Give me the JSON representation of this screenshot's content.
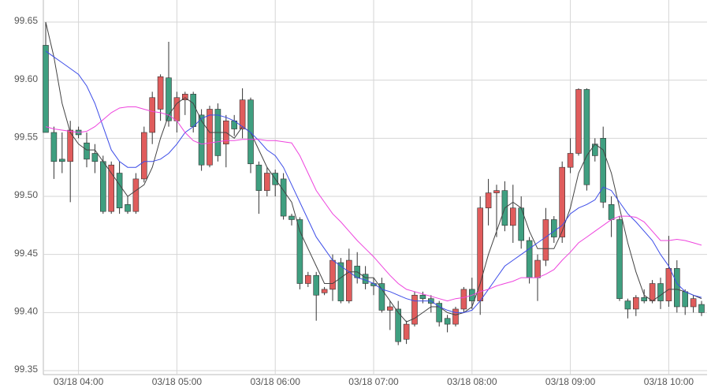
{
  "chart_data": {
    "type": "candlestick",
    "categories": [
      null,
      null,
      null,
      null,
      "03/18 04:00",
      null,
      null,
      null,
      null,
      null,
      null,
      null,
      null,
      null,
      null,
      null,
      "03/18 05:00",
      null,
      null,
      null,
      null,
      null,
      null,
      null,
      null,
      null,
      null,
      null,
      "03/18 06:00",
      null,
      null,
      null,
      null,
      null,
      null,
      null,
      null,
      null,
      null,
      null,
      "03/18 07:00",
      null,
      null,
      null,
      null,
      null,
      null,
      null,
      null,
      null,
      null,
      null,
      "03/18 08:00",
      null,
      null,
      null,
      null,
      null,
      null,
      null,
      null,
      null,
      null,
      null,
      "03/18 09:00",
      null,
      null,
      null,
      null,
      null,
      null,
      null,
      null,
      null,
      null,
      null,
      "03/18 10:00",
      null,
      null,
      null,
      null
    ],
    "open": [
      99.63,
      99.555,
      99.532,
      99.53,
      99.557,
      99.546,
      99.537,
      99.53,
      99.487,
      99.52,
      99.493,
      99.487,
      99.515,
      99.555,
      99.575,
      99.602,
      99.565,
      99.583,
      99.588,
      99.57,
      99.527,
      99.575,
      99.545,
      99.565,
      99.558,
      99.583,
      99.527,
      99.505,
      99.52,
      99.515,
      99.483,
      99.48,
      99.425,
      99.432,
      99.417,
      99.42,
      99.443,
      99.41,
      99.44,
      99.433,
      99.425,
      99.425,
      99.402,
      99.403,
      99.377,
      99.39,
      99.415,
      99.412,
      99.408,
      99.395,
      99.39,
      99.403,
      99.42,
      99.41,
      99.49,
      99.503,
      99.505,
      99.475,
      99.49,
      99.462,
      99.43,
      99.445,
      99.48,
      99.465,
      99.525,
      99.537,
      99.592,
      99.545,
      99.55,
      99.493,
      99.48,
      99.41,
      99.403,
      99.413,
      99.41,
      99.425,
      99.41,
      99.438,
      99.418,
      99.405,
      99.407
    ],
    "high": [
      99.65,
      99.56,
      99.555,
      99.565,
      99.56,
      99.555,
      99.545,
      99.535,
      99.53,
      99.53,
      99.5,
      99.52,
      99.56,
      99.59,
      99.605,
      99.633,
      99.59,
      99.59,
      99.59,
      99.575,
      99.578,
      99.58,
      99.57,
      99.57,
      99.593,
      99.585,
      99.53,
      99.525,
      99.523,
      99.52,
      99.485,
      99.482,
      99.435,
      99.435,
      99.422,
      99.45,
      99.447,
      99.455,
      99.452,
      99.44,
      99.43,
      99.43,
      99.41,
      99.41,
      99.393,
      99.418,
      99.418,
      99.415,
      99.41,
      99.398,
      99.405,
      99.422,
      99.43,
      99.5,
      99.515,
      99.51,
      99.513,
      99.51,
      99.5,
      99.465,
      99.45,
      99.49,
      99.483,
      99.53,
      99.55,
      99.593,
      99.593,
      99.55,
      99.56,
      99.5,
      99.483,
      99.412,
      99.415,
      99.42,
      99.428,
      99.43,
      99.466,
      99.445,
      99.42,
      99.415,
      99.41
    ],
    "low": [
      99.555,
      99.515,
      99.52,
      99.495,
      99.55,
      99.525,
      99.52,
      99.485,
      99.485,
      99.485,
      99.485,
      99.485,
      99.512,
      99.545,
      99.565,
      99.56,
      99.555,
      99.57,
      99.555,
      99.522,
      99.525,
      99.53,
      99.525,
      99.552,
      99.55,
      99.52,
      99.485,
      99.5,
      99.5,
      99.48,
      99.475,
      99.42,
      99.422,
      99.393,
      99.415,
      99.41,
      99.408,
      99.408,
      99.425,
      99.42,
      99.415,
      99.4,
      99.385,
      99.372,
      99.373,
      99.388,
      99.408,
      99.4,
      99.388,
      99.383,
      99.388,
      99.4,
      99.403,
      99.398,
      99.475,
      99.465,
      99.47,
      99.46,
      99.455,
      99.425,
      99.41,
      99.44,
      99.46,
      99.46,
      99.52,
      99.535,
      99.505,
      99.53,
      99.49,
      99.465,
      99.41,
      99.395,
      99.397,
      99.408,
      99.408,
      99.403,
      99.405,
      99.4,
      99.398,
      99.4,
      99.397
    ],
    "close": [
      99.555,
      99.53,
      99.53,
      99.557,
      99.553,
      99.532,
      99.53,
      99.487,
      99.527,
      99.49,
      99.487,
      99.515,
      99.555,
      99.585,
      99.603,
      99.565,
      99.585,
      99.588,
      99.56,
      99.527,
      99.575,
      99.535,
      99.565,
      99.558,
      99.583,
      99.528,
      99.505,
      99.52,
      99.51,
      99.483,
      99.48,
      99.425,
      99.432,
      99.415,
      99.42,
      99.445,
      99.41,
      99.445,
      99.43,
      99.425,
      99.423,
      99.402,
      99.405,
      99.375,
      99.39,
      99.415,
      99.412,
      99.408,
      99.392,
      99.39,
      99.403,
      99.42,
      99.41,
      99.49,
      99.503,
      99.505,
      99.475,
      99.49,
      99.462,
      99.43,
      99.445,
      99.48,
      99.465,
      99.525,
      99.537,
      99.592,
      99.51,
      99.535,
      99.495,
      99.48,
      99.412,
      99.403,
      99.413,
      99.41,
      99.425,
      99.41,
      99.438,
      99.405,
      99.405,
      99.412,
      99.4
    ],
    "up_color": "#e05c5c",
    "down_color": "#3f9f80",
    "lines": [
      {
        "color": "#444444",
        "values": [
          99.65,
          99.62,
          99.58,
          99.555,
          99.545,
          99.54,
          99.54,
          99.53,
          99.52,
          99.51,
          99.5,
          99.505,
          99.51,
          99.525,
          99.55,
          99.57,
          99.58,
          99.585,
          99.58,
          99.565,
          99.555,
          99.555,
          99.555,
          99.55,
          99.56,
          99.555,
          99.54,
          99.525,
          99.515,
          99.505,
          99.495,
          99.47,
          99.455,
          99.44,
          99.425,
          99.425,
          99.43,
          99.435,
          99.435,
          99.43,
          99.43,
          99.42,
          99.41,
          99.4,
          99.392,
          99.395,
          99.4,
          99.405,
          99.405,
          99.4,
          99.398,
          99.4,
          99.405,
          99.425,
          99.45,
          99.47,
          99.49,
          99.495,
          99.49,
          99.47,
          99.455,
          99.455,
          99.455,
          99.47,
          99.49,
          99.52,
          99.535,
          99.545,
          99.54,
          99.52,
          99.49,
          99.46,
          99.435,
          99.415,
          99.41,
          99.415,
          99.42,
          99.42,
          99.418,
          99.415,
          99.412
        ]
      },
      {
        "color": "#3d4de8",
        "values": [
          99.625,
          99.62,
          99.615,
          99.61,
          99.605,
          99.595,
          99.58,
          99.56,
          99.54,
          99.53,
          99.525,
          99.525,
          99.53,
          99.53,
          99.532,
          99.537,
          99.545,
          99.555,
          99.56,
          99.567,
          99.57,
          99.57,
          99.568,
          99.565,
          99.56,
          99.555,
          99.548,
          99.54,
          99.535,
          99.525,
          99.51,
          99.495,
          99.48,
          99.465,
          99.455,
          99.445,
          99.44,
          99.435,
          99.43,
          99.428,
          99.425,
          99.42,
          99.418,
          99.415,
          99.412,
          99.41,
          99.41,
          99.41,
          99.405,
          99.402,
          99.4,
          99.4,
          99.402,
          99.41,
          99.42,
          99.43,
          99.44,
          99.445,
          99.45,
          99.455,
          99.46,
          99.465,
          99.47,
          99.475,
          99.485,
          99.49,
          99.493,
          99.497,
          99.508,
          99.505,
          99.495,
          99.485,
          99.478,
          99.47,
          99.462,
          99.45,
          99.44,
          99.425,
          99.418,
          99.415,
          99.413
        ]
      },
      {
        "color": "#ee44dd",
        "values": [
          99.56,
          99.558,
          99.557,
          99.556,
          99.555,
          99.556,
          99.56,
          99.566,
          99.572,
          99.576,
          99.577,
          99.577,
          99.575,
          99.573,
          99.572,
          99.57,
          99.565,
          99.555,
          99.548,
          99.545,
          99.546,
          99.547,
          99.548,
          99.548,
          99.549,
          99.549,
          99.549,
          99.548,
          99.548,
          99.547,
          99.546,
          99.535,
          99.52,
          99.505,
          99.495,
          99.485,
          99.478,
          99.47,
          99.462,
          99.455,
          99.448,
          99.44,
          99.432,
          99.425,
          99.42,
          99.418,
          99.416,
          99.414,
          99.412,
          99.41,
          99.412,
          99.413,
          99.415,
          99.418,
          99.42,
          99.423,
          99.425,
          99.427,
          99.43,
          99.43,
          99.43,
          99.433,
          99.437,
          99.445,
          99.452,
          99.46,
          99.465,
          99.47,
          99.475,
          99.48,
          99.483,
          99.483,
          99.482,
          99.478,
          99.47,
          99.462,
          99.462,
          99.463,
          99.462,
          99.46,
          99.458
        ]
      }
    ],
    "ylim": [
      99.345,
      99.67
    ],
    "yticks": [
      99.35,
      {
        "value": 99.4,
        "label": "99.40"
      },
      99.45,
      {
        "value": 99.5,
        "label": "99.50"
      },
      99.55,
      {
        "value": 99.6,
        "label": "99.60"
      },
      99.65
    ],
    "grid": true
  }
}
